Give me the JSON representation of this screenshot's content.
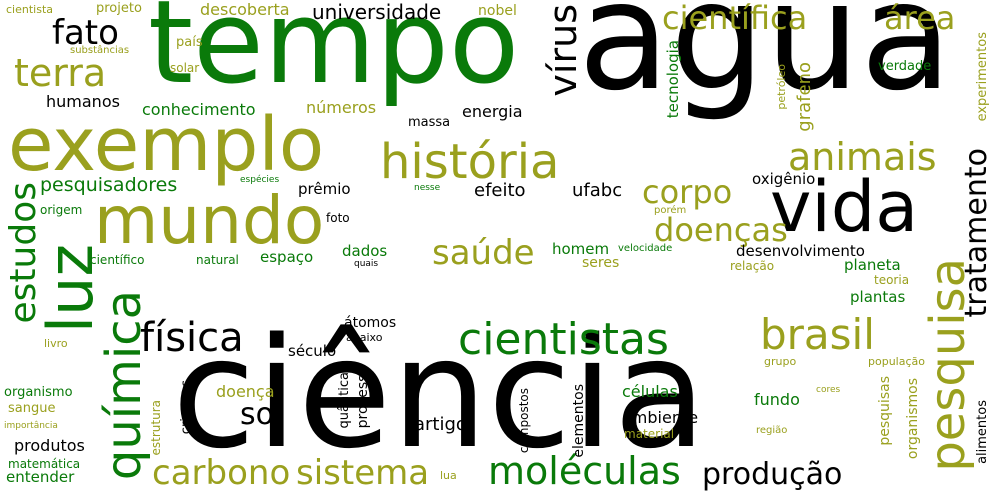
{
  "palette": {
    "black": "#000000",
    "green": "#0a7a0a",
    "olive": "#9aa01e"
  },
  "words": [
    {
      "text": "água",
      "color": "black"
    },
    {
      "text": "tempo",
      "color": "green"
    },
    {
      "text": "ciência",
      "color": "black"
    },
    {
      "text": "exemplo",
      "color": "olive"
    },
    {
      "text": "vida",
      "color": "black"
    },
    {
      "text": "mundo",
      "color": "olive"
    },
    {
      "text": "luz",
      "color": "green"
    },
    {
      "text": "história",
      "color": "olive"
    },
    {
      "text": "química",
      "color": "green"
    },
    {
      "text": "pesquisa",
      "color": "olive"
    },
    {
      "text": "cientistas",
      "color": "green"
    },
    {
      "text": "brasil",
      "color": "olive"
    },
    {
      "text": "física",
      "color": "black"
    },
    {
      "text": "moléculas",
      "color": "green"
    },
    {
      "text": "sistema",
      "color": "olive"
    },
    {
      "text": "carbono",
      "color": "olive"
    },
    {
      "text": "científica",
      "color": "olive"
    },
    {
      "text": "área",
      "color": "olive"
    },
    {
      "text": "terra",
      "color": "olive"
    },
    {
      "text": "fato",
      "color": "black"
    },
    {
      "text": "animais",
      "color": "olive"
    },
    {
      "text": "vírus",
      "color": "black"
    },
    {
      "text": "estudos",
      "color": "green"
    },
    {
      "text": "tratamento",
      "color": "black"
    },
    {
      "text": "corpo",
      "color": "olive"
    },
    {
      "text": "doenças",
      "color": "olive"
    },
    {
      "text": "saúde",
      "color": "olive"
    },
    {
      "text": "produção",
      "color": "black"
    },
    {
      "text": "sol",
      "color": "black"
    },
    {
      "text": "universidade",
      "color": "black"
    },
    {
      "text": "descoberta",
      "color": "olive"
    },
    {
      "text": "pesquisadores",
      "color": "green"
    },
    {
      "text": "humanos",
      "color": "black"
    },
    {
      "text": "conhecimento",
      "color": "green"
    },
    {
      "text": "números",
      "color": "olive"
    },
    {
      "text": "energia",
      "color": "black"
    },
    {
      "text": "massa",
      "color": "black"
    },
    {
      "text": "efeito",
      "color": "black"
    },
    {
      "text": "ufabc",
      "color": "black"
    },
    {
      "text": "prêmio",
      "color": "black"
    },
    {
      "text": "oxigênio",
      "color": "black"
    },
    {
      "text": "grafeno",
      "color": "olive"
    },
    {
      "text": "tecnologia",
      "color": "green"
    },
    {
      "text": "petróleo",
      "color": "olive"
    },
    {
      "text": "verdade",
      "color": "green"
    },
    {
      "text": "experimentos",
      "color": "olive"
    },
    {
      "text": "nobel",
      "color": "olive"
    },
    {
      "text": "projeto",
      "color": "olive"
    },
    {
      "text": "cientista",
      "color": "olive"
    },
    {
      "text": "substâncias",
      "color": "olive"
    },
    {
      "text": "país",
      "color": "olive"
    },
    {
      "text": "solar",
      "color": "olive"
    },
    {
      "text": "espécies",
      "color": "green"
    },
    {
      "text": "nesse",
      "color": "green"
    },
    {
      "text": "porém",
      "color": "olive"
    },
    {
      "text": "origem",
      "color": "green"
    },
    {
      "text": "foto",
      "color": "black"
    },
    {
      "text": "dados",
      "color": "green"
    },
    {
      "text": "homem",
      "color": "green"
    },
    {
      "text": "velocidade",
      "color": "green"
    },
    {
      "text": "desenvolvimento",
      "color": "black"
    },
    {
      "text": "científico",
      "color": "green"
    },
    {
      "text": "natural",
      "color": "green"
    },
    {
      "text": "espaço",
      "color": "green"
    },
    {
      "text": "quais",
      "color": "black"
    },
    {
      "text": "seres",
      "color": "olive"
    },
    {
      "text": "relação",
      "color": "olive"
    },
    {
      "text": "planeta",
      "color": "green"
    },
    {
      "text": "teoria",
      "color": "olive"
    },
    {
      "text": "plantas",
      "color": "green"
    },
    {
      "text": "átomos",
      "color": "black"
    },
    {
      "text": "abaixo",
      "color": "black"
    },
    {
      "text": "século",
      "color": "black"
    },
    {
      "text": "livro",
      "color": "olive"
    },
    {
      "text": "grupo",
      "color": "olive"
    },
    {
      "text": "população",
      "color": "olive"
    },
    {
      "text": "organismo",
      "color": "green"
    },
    {
      "text": "estrutura",
      "color": "olive"
    },
    {
      "text": "crianças",
      "color": "black"
    },
    {
      "text": "doença",
      "color": "olive"
    },
    {
      "text": "células",
      "color": "green"
    },
    {
      "text": "fundo",
      "color": "green"
    },
    {
      "text": "cores",
      "color": "olive"
    },
    {
      "text": "pesquisas",
      "color": "olive"
    },
    {
      "text": "organismos",
      "color": "olive"
    },
    {
      "text": "alimentos",
      "color": "black"
    },
    {
      "text": "sangue",
      "color": "olive"
    },
    {
      "text": "quântica",
      "color": "black"
    },
    {
      "text": "processo",
      "color": "black"
    },
    {
      "text": "compostos",
      "color": "black"
    },
    {
      "text": "elementos",
      "color": "black"
    },
    {
      "text": "ambiente",
      "color": "black"
    },
    {
      "text": "artigo",
      "color": "black"
    },
    {
      "text": "material",
      "color": "olive"
    },
    {
      "text": "região",
      "color": "olive"
    },
    {
      "text": "produtos",
      "color": "black"
    },
    {
      "text": "importância",
      "color": "olive"
    },
    {
      "text": "matemática",
      "color": "green"
    },
    {
      "text": "entender",
      "color": "green"
    },
    {
      "text": "lua",
      "color": "olive"
    }
  ]
}
